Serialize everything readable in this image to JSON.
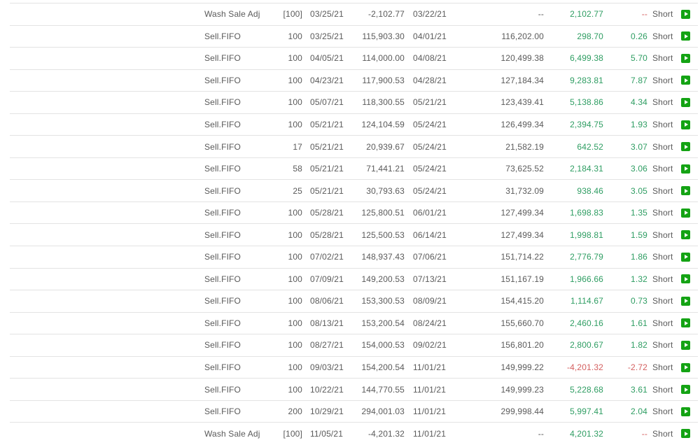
{
  "colors": {
    "text": "#5a5a5a",
    "gain_positive": "#2e9d62",
    "gain_negative": "#d45f5f",
    "row_border": "#e3e3e3",
    "action_icon_green": "#14a314"
  },
  "rows": [
    {
      "action": "Wash Sale Adj",
      "qty": "[100]",
      "open_date": "03/25/21",
      "cost": "-2,102.77",
      "close_date": "03/22/21",
      "proceeds": "--",
      "gain": "2,102.77",
      "pct": "--",
      "term": "Short"
    },
    {
      "action": "Sell.FIFO",
      "qty": "100",
      "open_date": "03/25/21",
      "cost": "115,903.30",
      "close_date": "04/01/21",
      "proceeds": "116,202.00",
      "gain": "298.70",
      "pct": "0.26",
      "term": "Short"
    },
    {
      "action": "Sell.FIFO",
      "qty": "100",
      "open_date": "04/05/21",
      "cost": "114,000.00",
      "close_date": "04/08/21",
      "proceeds": "120,499.38",
      "gain": "6,499.38",
      "pct": "5.70",
      "term": "Short"
    },
    {
      "action": "Sell.FIFO",
      "qty": "100",
      "open_date": "04/23/21",
      "cost": "117,900.53",
      "close_date": "04/28/21",
      "proceeds": "127,184.34",
      "gain": "9,283.81",
      "pct": "7.87",
      "term": "Short"
    },
    {
      "action": "Sell.FIFO",
      "qty": "100",
      "open_date": "05/07/21",
      "cost": "118,300.55",
      "close_date": "05/21/21",
      "proceeds": "123,439.41",
      "gain": "5,138.86",
      "pct": "4.34",
      "term": "Short"
    },
    {
      "action": "Sell.FIFO",
      "qty": "100",
      "open_date": "05/21/21",
      "cost": "124,104.59",
      "close_date": "05/24/21",
      "proceeds": "126,499.34",
      "gain": "2,394.75",
      "pct": "1.93",
      "term": "Short"
    },
    {
      "action": "Sell.FIFO",
      "qty": "17",
      "open_date": "05/21/21",
      "cost": "20,939.67",
      "close_date": "05/24/21",
      "proceeds": "21,582.19",
      "gain": "642.52",
      "pct": "3.07",
      "term": "Short"
    },
    {
      "action": "Sell.FIFO",
      "qty": "58",
      "open_date": "05/21/21",
      "cost": "71,441.21",
      "close_date": "05/24/21",
      "proceeds": "73,625.52",
      "gain": "2,184.31",
      "pct": "3.06",
      "term": "Short"
    },
    {
      "action": "Sell.FIFO",
      "qty": "25",
      "open_date": "05/21/21",
      "cost": "30,793.63",
      "close_date": "05/24/21",
      "proceeds": "31,732.09",
      "gain": "938.46",
      "pct": "3.05",
      "term": "Short"
    },
    {
      "action": "Sell.FIFO",
      "qty": "100",
      "open_date": "05/28/21",
      "cost": "125,800.51",
      "close_date": "06/01/21",
      "proceeds": "127,499.34",
      "gain": "1,698.83",
      "pct": "1.35",
      "term": "Short"
    },
    {
      "action": "Sell.FIFO",
      "qty": "100",
      "open_date": "05/28/21",
      "cost": "125,500.53",
      "close_date": "06/14/21",
      "proceeds": "127,499.34",
      "gain": "1,998.81",
      "pct": "1.59",
      "term": "Short"
    },
    {
      "action": "Sell.FIFO",
      "qty": "100",
      "open_date": "07/02/21",
      "cost": "148,937.43",
      "close_date": "07/06/21",
      "proceeds": "151,714.22",
      "gain": "2,776.79",
      "pct": "1.86",
      "term": "Short"
    },
    {
      "action": "Sell.FIFO",
      "qty": "100",
      "open_date": "07/09/21",
      "cost": "149,200.53",
      "close_date": "07/13/21",
      "proceeds": "151,167.19",
      "gain": "1,966.66",
      "pct": "1.32",
      "term": "Short"
    },
    {
      "action": "Sell.FIFO",
      "qty": "100",
      "open_date": "08/06/21",
      "cost": "153,300.53",
      "close_date": "08/09/21",
      "proceeds": "154,415.20",
      "gain": "1,114.67",
      "pct": "0.73",
      "term": "Short"
    },
    {
      "action": "Sell.FIFO",
      "qty": "100",
      "open_date": "08/13/21",
      "cost": "153,200.54",
      "close_date": "08/24/21",
      "proceeds": "155,660.70",
      "gain": "2,460.16",
      "pct": "1.61",
      "term": "Short"
    },
    {
      "action": "Sell.FIFO",
      "qty": "100",
      "open_date": "08/27/21",
      "cost": "154,000.53",
      "close_date": "09/02/21",
      "proceeds": "156,801.20",
      "gain": "2,800.67",
      "pct": "1.82",
      "term": "Short"
    },
    {
      "action": "Sell.FIFO",
      "qty": "100",
      "open_date": "09/03/21",
      "cost": "154,200.54",
      "close_date": "11/01/21",
      "proceeds": "149,999.22",
      "gain": "-4,201.32",
      "pct": "-2.72",
      "term": "Short"
    },
    {
      "action": "Sell.FIFO",
      "qty": "100",
      "open_date": "10/22/21",
      "cost": "144,770.55",
      "close_date": "11/01/21",
      "proceeds": "149,999.23",
      "gain": "5,228.68",
      "pct": "3.61",
      "term": "Short"
    },
    {
      "action": "Sell.FIFO",
      "qty": "200",
      "open_date": "10/29/21",
      "cost": "294,001.03",
      "close_date": "11/01/21",
      "proceeds": "299,998.44",
      "gain": "5,997.41",
      "pct": "2.04",
      "term": "Short"
    },
    {
      "action": "Wash Sale Adj",
      "qty": "[100]",
      "open_date": "11/05/21",
      "cost": "-4,201.32",
      "close_date": "11/01/21",
      "proceeds": "--",
      "gain": "4,201.32",
      "pct": "--",
      "term": "Short"
    }
  ]
}
